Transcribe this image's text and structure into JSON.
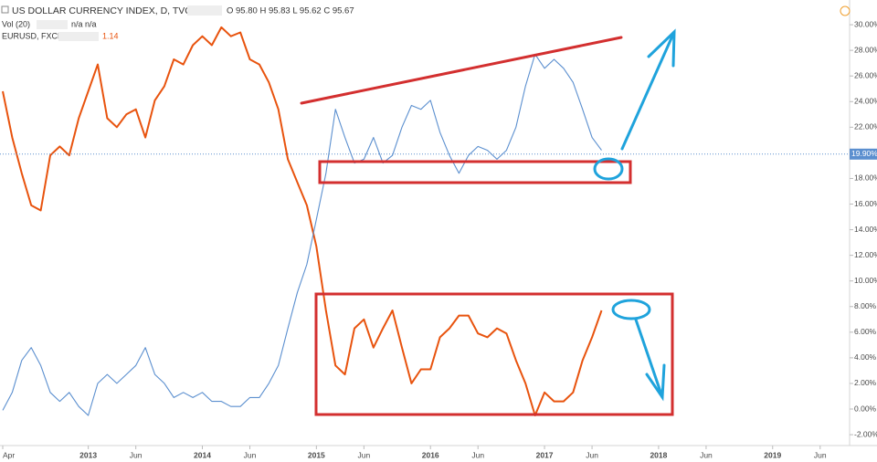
{
  "header": {
    "symbol": "US DOLLAR CURRENCY INDEX, D, TVC",
    "ohlc": "O 95.80 H 95.83 L 95.62 C 95.67",
    "volume_name": "Vol (20)",
    "volume_values": "n/a n/a",
    "compare_symbol": "EURUSD, FXCM",
    "compare_value": "1.14"
  },
  "chart_data": {
    "type": "line",
    "x": [
      "2012-04",
      "2012-05",
      "2012-06",
      "2012-07",
      "2012-08",
      "2012-09",
      "2012-10",
      "2012-11",
      "2012-12",
      "2013-01",
      "2013-02",
      "2013-03",
      "2013-04",
      "2013-05",
      "2013-06",
      "2013-07",
      "2013-08",
      "2013-09",
      "2013-10",
      "2013-11",
      "2013-12",
      "2014-01",
      "2014-02",
      "2014-03",
      "2014-04",
      "2014-05",
      "2014-06",
      "2014-07",
      "2014-08",
      "2014-09",
      "2014-10",
      "2014-11",
      "2014-12",
      "2015-01",
      "2015-02",
      "2015-03",
      "2015-04",
      "2015-05",
      "2015-06",
      "2015-07",
      "2015-08",
      "2015-09",
      "2015-10",
      "2015-11",
      "2015-12",
      "2016-01",
      "2016-02",
      "2016-03",
      "2016-04",
      "2016-05",
      "2016-06",
      "2016-07",
      "2016-08",
      "2016-09",
      "2016-10",
      "2016-11",
      "2016-12",
      "2017-01",
      "2017-02",
      "2017-03",
      "2017-04",
      "2017-05",
      "2017-06",
      "2017-07"
    ],
    "series": [
      {
        "name": "EURUSD, FXCM",
        "color": "#e8530e",
        "values": [
          24.8,
          21.2,
          18.4,
          15.9,
          15.5,
          19.8,
          20.5,
          19.8,
          22.7,
          24.8,
          26.9,
          22.7,
          22.0,
          23.0,
          23.4,
          21.2,
          24.1,
          25.2,
          27.3,
          26.9,
          28.4,
          29.1,
          28.4,
          29.8,
          29.1,
          29.4,
          27.3,
          26.9,
          25.5,
          23.4,
          19.5,
          17.7,
          15.9,
          12.7,
          7.7,
          3.4,
          2.7,
          6.3,
          7.0,
          4.8,
          6.3,
          7.7,
          4.8,
          2.0,
          3.1,
          3.1,
          5.6,
          6.3,
          7.3,
          7.3,
          5.9,
          5.6,
          6.3,
          5.9,
          3.8,
          2.0,
          -0.5,
          1.3,
          0.6,
          0.6,
          1.3,
          3.8,
          5.6,
          7.7
        ]
      },
      {
        "name": "US DOLLAR CURRENCY INDEX, D, TVC",
        "color": "#5b8fcf",
        "values": [
          -0.1,
          1.3,
          3.8,
          4.8,
          3.4,
          1.3,
          0.6,
          1.3,
          0.2,
          -0.5,
          2.0,
          2.7,
          2.0,
          2.7,
          3.4,
          4.8,
          2.7,
          2.0,
          0.9,
          1.3,
          0.9,
          1.3,
          0.6,
          0.6,
          0.2,
          0.2,
          0.9,
          0.9,
          2.0,
          3.4,
          6.3,
          9.1,
          11.3,
          14.8,
          18.4,
          23.4,
          21.2,
          19.2,
          19.5,
          21.2,
          19.2,
          19.8,
          22.0,
          23.7,
          23.4,
          24.1,
          21.6,
          19.8,
          18.4,
          19.8,
          20.5,
          20.2,
          19.5,
          20.2,
          22.0,
          25.2,
          27.7,
          26.6,
          27.3,
          26.6,
          25.5,
          23.4,
          21.2,
          20.2
        ]
      }
    ],
    "last_value": {
      "value": 19.9,
      "label": "19.90%"
    },
    "xlim": [
      "2012-04",
      "2019-09"
    ],
    "xticks": [
      {
        "value": "2012-04",
        "label": "Apr"
      },
      {
        "value": "2013-01",
        "label": "2013"
      },
      {
        "value": "2013-06",
        "label": "Jun"
      },
      {
        "value": "2014-01",
        "label": "2014"
      },
      {
        "value": "2014-06",
        "label": "Jun"
      },
      {
        "value": "2015-01",
        "label": "2015"
      },
      {
        "value": "2015-06",
        "label": "Jun"
      },
      {
        "value": "2016-01",
        "label": "2016"
      },
      {
        "value": "2016-06",
        "label": "Jun"
      },
      {
        "value": "2017-01",
        "label": "2017"
      },
      {
        "value": "2017-06",
        "label": "Jun"
      },
      {
        "value": "2018-01",
        "label": "2018"
      },
      {
        "value": "2018-06",
        "label": "Jun"
      },
      {
        "value": "2019-01",
        "label": "2019"
      },
      {
        "value": "2019-06",
        "label": "Jun"
      }
    ],
    "ylim": [
      -2.85,
      31.93
    ],
    "yticks": [
      {
        "value": -2,
        "label": "-2.00%"
      },
      {
        "value": 0,
        "label": "0.00%"
      },
      {
        "value": 2,
        "label": "2.00%"
      },
      {
        "value": 4,
        "label": "4.00%"
      },
      {
        "value": 6,
        "label": "6.00%"
      },
      {
        "value": 8,
        "label": "8.00%"
      },
      {
        "value": 10,
        "label": "10.00%"
      },
      {
        "value": 12,
        "label": "12.00%"
      },
      {
        "value": 14,
        "label": "14.00%"
      },
      {
        "value": 16,
        "label": "16.00%"
      },
      {
        "value": 18,
        "label": "18.00%"
      },
      {
        "value": 20,
        "label": "20.00%"
      },
      {
        "value": 22,
        "label": "22.00%"
      },
      {
        "value": 24,
        "label": "24.00%"
      },
      {
        "value": 26,
        "label": "26.00%"
      },
      {
        "value": 28,
        "label": "28.00%"
      },
      {
        "value": 30,
        "label": "30.00%"
      }
    ]
  }
}
